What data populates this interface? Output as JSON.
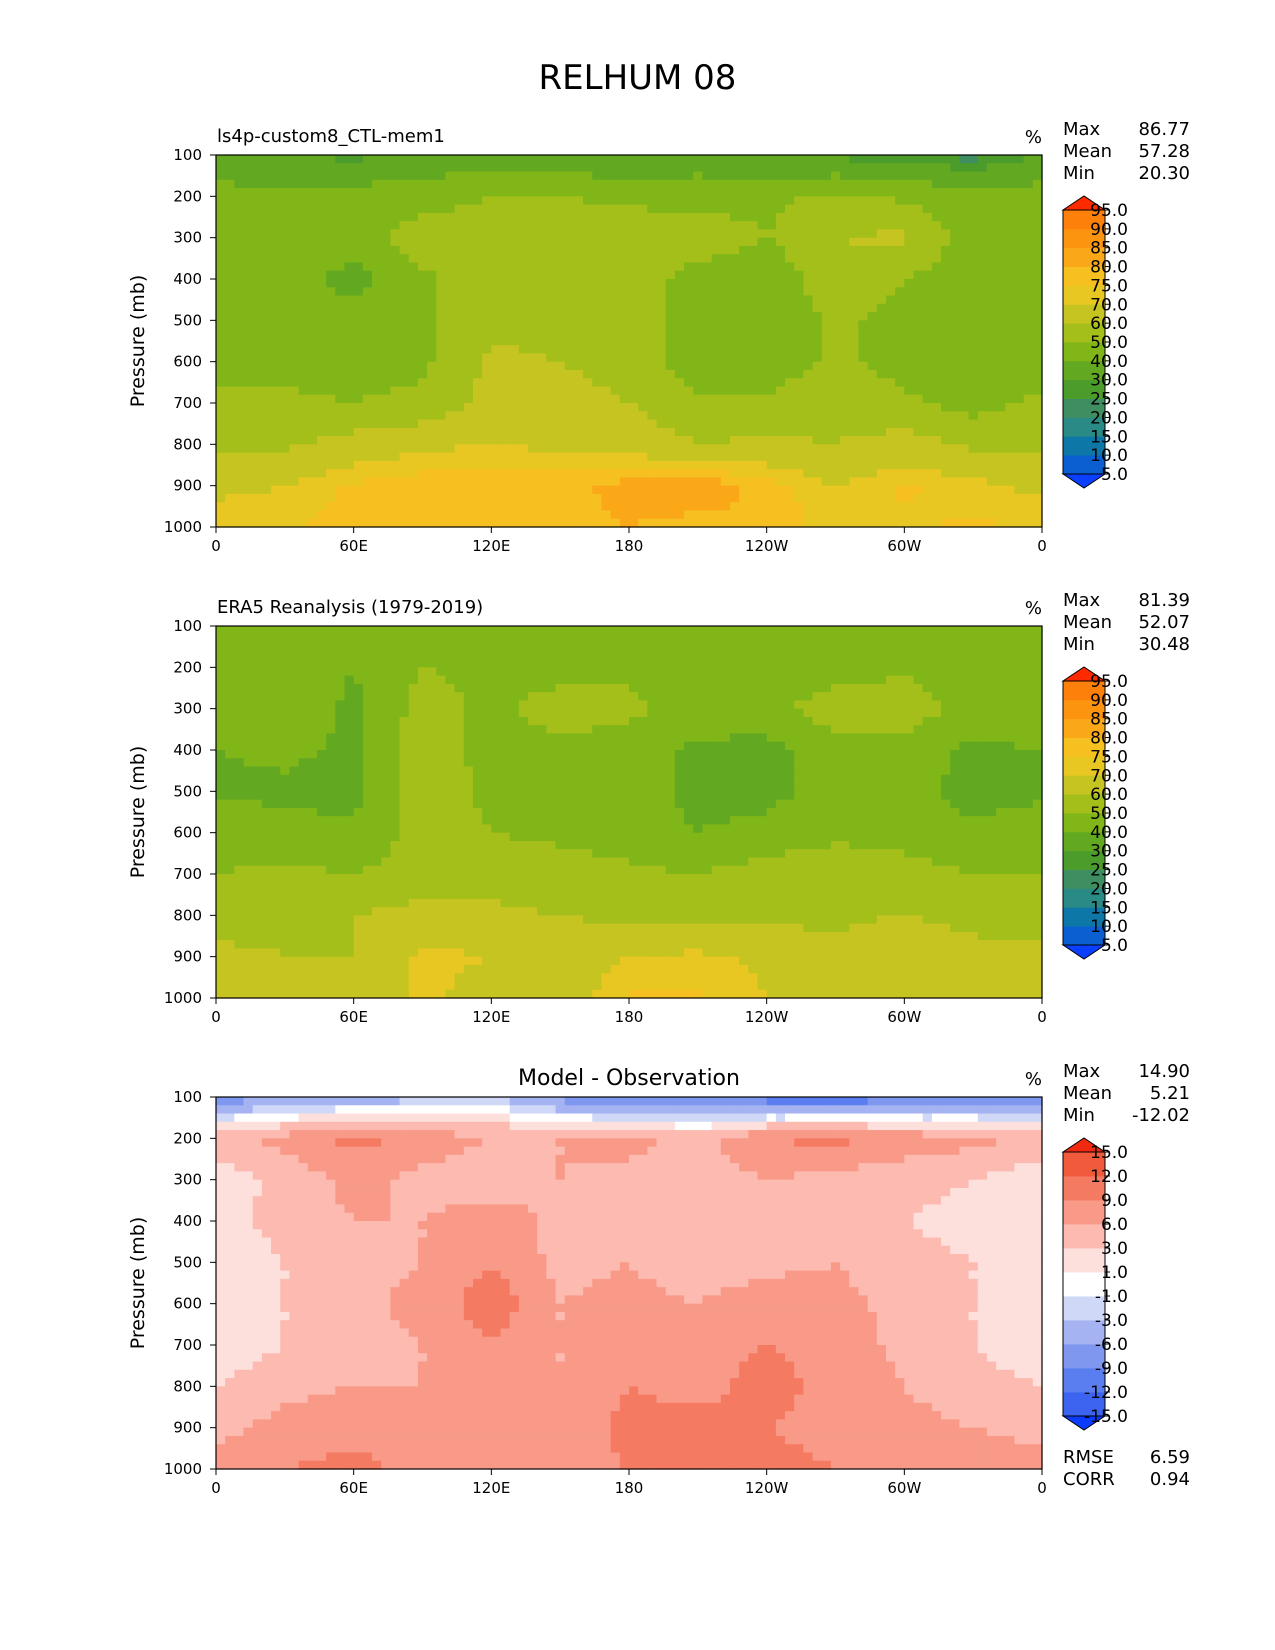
{
  "figure": {
    "title": "RELHUM 08"
  },
  "common": {
    "ylabel": "Pressure (mb)",
    "xticks": [
      "0",
      "60E",
      "120E",
      "180",
      "120W",
      "60W",
      "0"
    ],
    "yticks": [
      "100",
      "200",
      "300",
      "400",
      "500",
      "600",
      "700",
      "800",
      "900",
      "1000"
    ],
    "units": "%",
    "stat_labels": {
      "max": "Max",
      "mean": "Mean",
      "min": "Min",
      "rmse": "RMSE",
      "corr": "CORR"
    }
  },
  "panels": [
    {
      "title": "ls4p-custom8_CTL-mem1",
      "max": "86.77",
      "mean": "57.28",
      "min": "20.30"
    },
    {
      "title": "ERA5 Reanalysis (1979-2019)",
      "max": "81.39",
      "mean": "52.07",
      "min": "30.48"
    },
    {
      "title": "Model - Observation",
      "max": "14.90",
      "mean": "5.21",
      "min": "-12.02",
      "rmse": "6.59",
      "corr": "0.94"
    }
  ],
  "chart_data": [
    {
      "type": "heatmap",
      "title": "ls4p-custom8_CTL-mem1",
      "xlabel": "",
      "ylabel": "Pressure (mb)",
      "xlim": [
        0,
        360
      ],
      "ylim": [
        1000,
        100
      ],
      "colorbar_levels": [
        "5.0",
        "10.0",
        "15.0",
        "20.0",
        "25.0",
        "30.0",
        "40.0",
        "50.0",
        "60.0",
        "70.0",
        "75.0",
        "80.0",
        "85.0",
        "90.0",
        "95.0"
      ],
      "colors": [
        "#0a3fff",
        "#0b5fd0",
        "#0d77a8",
        "#2a8a85",
        "#3e8e62",
        "#4c9c2c",
        "#62a820",
        "#80b618",
        "#a4be1a",
        "#c6c420",
        "#e8c722",
        "#f6c020",
        "#fba818",
        "#fc9410",
        "#fd800a",
        "#fe6a05",
        "#ff2a00"
      ],
      "grid": {
        "lon": [
          0,
          30,
          60,
          90,
          120,
          150,
          180,
          210,
          240,
          270,
          300,
          330,
          360
        ],
        "p": [
          100,
          200,
          300,
          400,
          500,
          600,
          700,
          800,
          900,
          1000
        ],
        "values": [
          [
            30,
            30,
            28,
            32,
            34,
            32,
            30,
            34,
            30,
            28,
            26,
            22,
            30
          ],
          [
            45,
            42,
            44,
            46,
            50,
            50,
            48,
            46,
            48,
            52,
            48,
            44,
            45
          ],
          [
            45,
            44,
            46,
            55,
            55,
            56,
            56,
            56,
            50,
            60,
            62,
            44,
            45
          ],
          [
            46,
            44,
            36,
            48,
            56,
            58,
            56,
            46,
            42,
            58,
            50,
            44,
            46
          ],
          [
            46,
            46,
            45,
            48,
            58,
            55,
            56,
            44,
            42,
            52,
            46,
            45,
            46
          ],
          [
            46,
            46,
            46,
            48,
            62,
            60,
            58,
            42,
            44,
            52,
            46,
            44,
            46
          ],
          [
            52,
            52,
            50,
            52,
            64,
            62,
            60,
            52,
            52,
            56,
            52,
            46,
            52
          ],
          [
            58,
            58,
            64,
            68,
            70,
            68,
            66,
            60,
            62,
            60,
            64,
            58,
            58
          ],
          [
            68,
            70,
            76,
            78,
            80,
            78,
            82,
            84,
            78,
            70,
            76,
            72,
            68
          ],
          [
            74,
            74,
            78,
            80,
            80,
            78,
            80,
            78,
            80,
            72,
            74,
            76,
            74
          ]
        ]
      }
    },
    {
      "type": "heatmap",
      "title": "ERA5 Reanalysis (1979-2019)",
      "xlabel": "",
      "ylabel": "Pressure (mb)",
      "xlim": [
        0,
        360
      ],
      "ylim": [
        1000,
        100
      ],
      "colorbar_levels": [
        "5.0",
        "10.0",
        "15.0",
        "20.0",
        "25.0",
        "30.0",
        "40.0",
        "50.0",
        "60.0",
        "70.0",
        "75.0",
        "80.0",
        "85.0",
        "90.0",
        "95.0"
      ],
      "colors": [
        "#0a3fff",
        "#0b5fd0",
        "#0d77a8",
        "#2a8a85",
        "#3e8e62",
        "#4c9c2c",
        "#62a820",
        "#80b618",
        "#a4be1a",
        "#c6c420",
        "#e8c722",
        "#f6c020",
        "#fba818",
        "#fc9410",
        "#fd800a",
        "#fe6a05",
        "#ff2a00"
      ],
      "grid": {
        "lon": [
          0,
          30,
          60,
          90,
          120,
          150,
          180,
          210,
          240,
          270,
          300,
          330,
          360
        ],
        "p": [
          100,
          200,
          300,
          400,
          500,
          600,
          700,
          800,
          900,
          1000
        ],
        "values": [
          [
            45,
            45,
            42,
            46,
            48,
            48,
            46,
            45,
            42,
            44,
            46,
            46,
            45
          ],
          [
            44,
            46,
            40,
            50,
            48,
            46,
            48,
            46,
            44,
            46,
            48,
            44,
            44
          ],
          [
            48,
            46,
            38,
            54,
            48,
            54,
            52,
            46,
            48,
            54,
            56,
            46,
            48
          ],
          [
            40,
            42,
            38,
            56,
            46,
            48,
            46,
            38,
            36,
            48,
            46,
            38,
            40
          ],
          [
            38,
            38,
            36,
            56,
            48,
            46,
            46,
            36,
            36,
            46,
            44,
            36,
            38
          ],
          [
            46,
            44,
            42,
            54,
            50,
            48,
            46,
            40,
            44,
            48,
            46,
            42,
            46
          ],
          [
            50,
            52,
            50,
            54,
            56,
            54,
            52,
            50,
            54,
            56,
            54,
            50,
            50
          ],
          [
            56,
            58,
            60,
            64,
            62,
            60,
            58,
            56,
            58,
            58,
            60,
            56,
            56
          ],
          [
            62,
            60,
            60,
            72,
            70,
            64,
            70,
            72,
            68,
            62,
            68,
            64,
            62
          ],
          [
            66,
            66,
            64,
            72,
            66,
            64,
            76,
            76,
            70,
            66,
            68,
            66,
            66
          ]
        ]
      }
    },
    {
      "type": "heatmap",
      "title": "Model - Observation",
      "xlabel": "",
      "ylabel": "Pressure (mb)",
      "xlim": [
        0,
        360
      ],
      "ylim": [
        1000,
        100
      ],
      "colorbar_levels": [
        "-15.0",
        "-12.0",
        "-9.0",
        "-6.0",
        "-3.0",
        "-1.0",
        "1.0",
        "3.0",
        "6.0",
        "9.0",
        "12.0",
        "15.0"
      ],
      "colors": [
        "#0a3cff",
        "#3c64f0",
        "#5a7ef0",
        "#7f97ee",
        "#a5b3f2",
        "#d0d8f8",
        "#ffffff",
        "#fde0dc",
        "#fcbab0",
        "#f99a88",
        "#f57a62",
        "#f25a3c",
        "#f02a10"
      ],
      "grid": {
        "lon": [
          0,
          30,
          60,
          90,
          120,
          150,
          180,
          210,
          240,
          270,
          300,
          330,
          360
        ],
        "p": [
          100,
          200,
          300,
          400,
          500,
          600,
          700,
          800,
          900,
          1000
        ],
        "values": [
          [
            -8,
            -6,
            -5,
            -4,
            -3,
            -7,
            -10,
            -10,
            -11,
            -12,
            -10,
            -9,
            -8
          ],
          [
            5,
            7,
            10,
            8,
            6,
            6,
            7,
            5,
            9,
            10,
            8,
            7,
            5
          ],
          [
            1,
            4,
            7,
            5,
            4,
            6,
            5,
            4,
            6,
            5,
            4,
            3,
            1
          ],
          [
            2,
            4,
            6,
            6,
            8,
            5,
            5,
            4,
            6,
            5,
            3,
            2,
            2
          ],
          [
            1,
            3,
            5,
            6,
            9,
            5,
            6,
            4,
            5,
            6,
            4,
            3,
            1
          ],
          [
            1,
            3,
            5,
            7,
            11,
            6,
            7,
            6,
            8,
            7,
            5,
            3,
            1
          ],
          [
            1,
            3,
            5,
            6,
            9,
            6,
            7,
            8,
            9,
            8,
            5,
            3,
            1
          ],
          [
            3,
            5,
            6,
            6,
            7,
            6,
            9,
            8,
            10,
            8,
            6,
            4,
            3
          ],
          [
            5,
            7,
            8,
            7,
            8,
            7,
            10,
            10,
            9,
            8,
            7,
            6,
            5
          ],
          [
            7,
            9,
            10,
            8,
            9,
            8,
            9,
            9,
            10,
            9,
            8,
            8,
            7
          ]
        ]
      }
    }
  ]
}
